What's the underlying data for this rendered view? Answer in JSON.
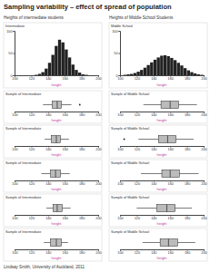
{
  "title": "Sampling variability – effect of spread of population",
  "footer": "Lindsay Smith, University of Auckland, 2011",
  "columns": [
    "Heights of intermediate students",
    "Heights of Middle School Students"
  ],
  "chart_data": [
    {
      "type": "histogram",
      "title": "Intermediate",
      "x_label": "height",
      "color": "#222222",
      "bins": [
        100,
        104,
        108,
        112,
        116,
        120,
        124,
        128,
        132,
        136,
        140,
        144,
        148,
        152,
        156,
        160,
        164,
        168,
        172,
        176,
        180,
        184,
        188,
        192,
        196,
        200
      ],
      "counts": [
        0,
        0,
        0,
        0,
        0,
        0,
        1,
        3,
        7,
        15,
        28,
        46,
        66,
        80,
        74,
        58,
        40,
        24,
        12,
        6,
        2,
        1,
        0,
        0,
        0
      ],
      "xlim": [
        100,
        200
      ],
      "xticks": [
        100,
        120,
        140,
        160,
        180,
        200
      ],
      "ylim": [
        0,
        100
      ],
      "yticks": [
        0,
        50,
        100
      ]
    },
    {
      "type": "box",
      "title": "Sample of Intermediate",
      "x_label": "height",
      "color": "#bbbbbb",
      "min": 134,
      "q1": 145,
      "median": 151,
      "q3": 156,
      "max": 168,
      "outliers": [
        178
      ],
      "xlim": [
        100,
        200
      ],
      "xticks": [
        100,
        120,
        140,
        160,
        180,
        200
      ]
    },
    {
      "type": "box",
      "title": "Sample of Intermediate",
      "x_label": "height",
      "color": "#bbbbbb",
      "min": 136,
      "q1": 144,
      "median": 150,
      "q3": 155,
      "max": 165,
      "outliers": [],
      "xlim": [
        100,
        200
      ],
      "xticks": [
        100,
        120,
        140,
        160,
        180,
        200
      ]
    },
    {
      "type": "box",
      "title": "Sample of Intermediate",
      "x_label": "height",
      "color": "#bbbbbb",
      "min": 132,
      "q1": 143,
      "median": 149,
      "q3": 155,
      "max": 166,
      "outliers": [],
      "xlim": [
        100,
        200
      ],
      "xticks": [
        100,
        120,
        140,
        160,
        180,
        200
      ]
    },
    {
      "type": "box",
      "title": "Sample of Intermediate",
      "x_label": "height",
      "color": "#bbbbbb",
      "min": 138,
      "q1": 146,
      "median": 151,
      "q3": 157,
      "max": 167,
      "outliers": [],
      "xlim": [
        100,
        200
      ],
      "xticks": [
        100,
        120,
        140,
        160,
        180,
        200
      ]
    },
    {
      "type": "box",
      "title": "Sample of Intermediate",
      "x_label": "height",
      "color": "#bbbbbb",
      "min": 135,
      "q1": 143,
      "median": 150,
      "q3": 156,
      "max": 164,
      "outliers": [],
      "xlim": [
        100,
        200
      ],
      "xticks": [
        100,
        120,
        140,
        160,
        180,
        200
      ]
    },
    {
      "type": "histogram",
      "title": "Middle School",
      "x_label": "height",
      "color": "#222222",
      "bins": [
        100,
        104,
        108,
        112,
        116,
        120,
        124,
        128,
        132,
        136,
        140,
        144,
        148,
        152,
        156,
        160,
        164,
        168,
        172,
        176,
        180,
        184,
        188,
        192,
        196,
        200
      ],
      "counts": [
        0,
        1,
        2,
        3,
        5,
        8,
        12,
        17,
        23,
        29,
        35,
        40,
        44,
        45,
        43,
        39,
        34,
        28,
        22,
        16,
        11,
        7,
        4,
        2,
        1
      ],
      "xlim": [
        100,
        200
      ],
      "xticks": [
        100,
        120,
        140,
        160,
        180,
        200
      ],
      "ylim": [
        0,
        100
      ],
      "yticks": [
        0,
        50,
        100
      ]
    },
    {
      "type": "box",
      "title": "Sample of Middle School",
      "x_label": "height",
      "color": "#bbbbbb",
      "min": 128,
      "q1": 149,
      "median": 160,
      "q3": 170,
      "max": 192,
      "outliers": [],
      "xlim": [
        100,
        200
      ],
      "xticks": [
        100,
        120,
        140,
        160,
        180,
        200
      ]
    },
    {
      "type": "box",
      "title": "Sample of Middle School",
      "x_label": "height",
      "color": "#bbbbbb",
      "min": 122,
      "q1": 146,
      "median": 157,
      "q3": 167,
      "max": 188,
      "outliers": [
        105
      ],
      "xlim": [
        100,
        200
      ],
      "xticks": [
        100,
        120,
        140,
        160,
        180,
        200
      ]
    },
    {
      "type": "box",
      "title": "Sample of Middle School",
      "x_label": "height",
      "color": "#bbbbbb",
      "min": 125,
      "q1": 150,
      "median": 160,
      "q3": 171,
      "max": 194,
      "outliers": [],
      "xlim": [
        100,
        200
      ],
      "xticks": [
        100,
        120,
        140,
        160,
        180,
        200
      ]
    },
    {
      "type": "box",
      "title": "Sample of Middle School",
      "x_label": "height",
      "color": "#bbbbbb",
      "min": 120,
      "q1": 144,
      "median": 156,
      "q3": 166,
      "max": 186,
      "outliers": [],
      "xlim": [
        100,
        200
      ],
      "xticks": [
        100,
        120,
        140,
        160,
        180,
        200
      ]
    },
    {
      "type": "box",
      "title": "Sample of Middle School",
      "x_label": "height",
      "color": "#bbbbbb",
      "min": 127,
      "q1": 148,
      "median": 158,
      "q3": 169,
      "max": 190,
      "outliers": [],
      "xlim": [
        100,
        200
      ],
      "xticks": [
        100,
        120,
        140,
        160,
        180,
        200
      ]
    }
  ]
}
